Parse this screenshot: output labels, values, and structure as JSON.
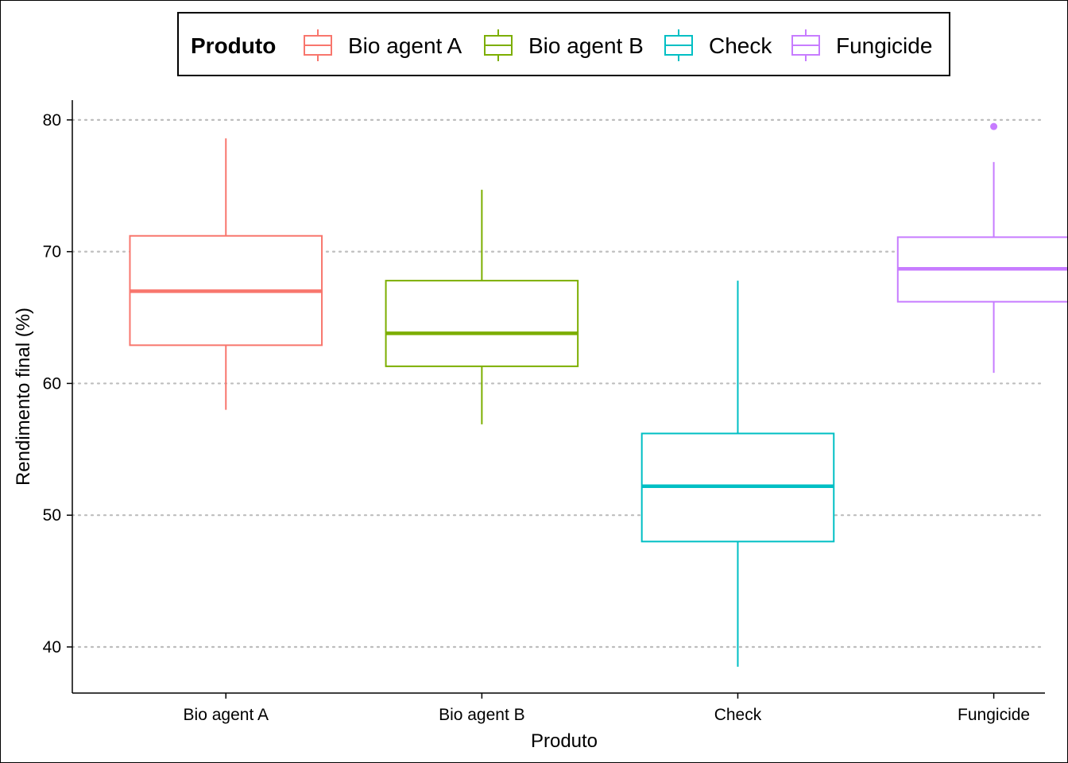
{
  "chart_data": {
    "type": "boxplot",
    "xlabel": "Produto",
    "ylabel": "Rendimento final (%)",
    "ylim": [
      36.5,
      81.5
    ],
    "yticks": [
      40,
      50,
      60,
      70,
      80
    ],
    "grid": "horizontal-dotted",
    "legend": {
      "title": "Produto",
      "placement": "top"
    },
    "categories": [
      "Bio agent A",
      "Bio agent B",
      "Check",
      "Fungicide"
    ],
    "colors": [
      "#F8766D",
      "#7CAE00",
      "#00BFC4",
      "#C77CFF"
    ],
    "boxes": [
      {
        "category": "Bio agent A",
        "whisker_low": 58.0,
        "q1": 62.9,
        "median": 67.0,
        "q3": 71.2,
        "whisker_high": 78.6,
        "outliers": []
      },
      {
        "category": "Bio agent B",
        "whisker_low": 56.9,
        "q1": 61.3,
        "median": 63.8,
        "q3": 67.8,
        "whisker_high": 74.7,
        "outliers": []
      },
      {
        "category": "Check",
        "whisker_low": 38.5,
        "q1": 48.0,
        "median": 52.2,
        "q3": 56.2,
        "whisker_high": 67.8,
        "outliers": []
      },
      {
        "category": "Fungicide",
        "whisker_low": 60.8,
        "q1": 66.2,
        "median": 68.7,
        "q3": 71.1,
        "whisker_high": 76.8,
        "outliers": [
          79.5
        ]
      }
    ]
  }
}
